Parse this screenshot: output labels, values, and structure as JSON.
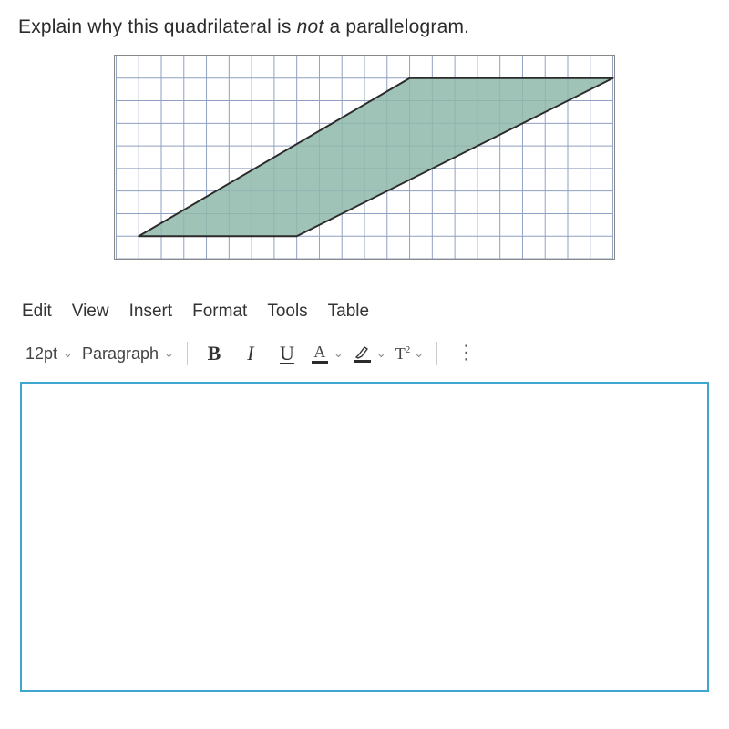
{
  "prompt": {
    "before": "Explain why this quadrilateral is ",
    "emph": "not",
    "after": " a parallelogram."
  },
  "figure": {
    "grid": {
      "cols": 22,
      "rows": 9,
      "cell": 25,
      "line_color": "#8fa0c2",
      "background": "#ffffff"
    },
    "shape": {
      "fill": "#8fb8ab",
      "fill_opacity": 0.85,
      "stroke": "#2b2b2b",
      "stroke_width": 2,
      "points": [
        [
          1,
          8
        ],
        [
          8,
          8
        ],
        [
          22,
          1
        ],
        [
          13,
          1
        ]
      ]
    }
  },
  "menu": {
    "items": [
      "Edit",
      "View",
      "Insert",
      "Format",
      "Tools",
      "Table"
    ]
  },
  "toolbar": {
    "font_size": "12pt",
    "block_format": "Paragraph",
    "bold_label": "B",
    "italic_label": "I",
    "underline_label": "U",
    "text_color_glyph": "A",
    "text_color_swatch": "#2b2b2b",
    "highlight_swatch": "#2b2b2b",
    "superscript_base": "T",
    "superscript_exp": "2"
  },
  "editor": {
    "content": "",
    "border_color": "#3fa6cf"
  }
}
